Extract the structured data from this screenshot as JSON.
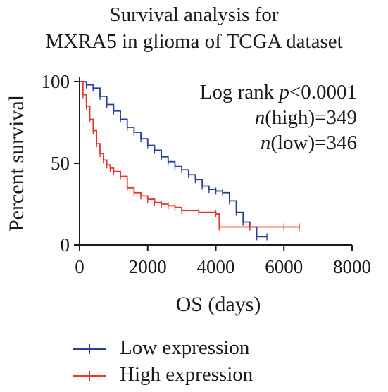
{
  "chart_data": {
    "type": "line",
    "title_lines": [
      "Survival analysis for",
      "MXRA5 in glioma of TCGA dataset"
    ],
    "xlabel": "OS (days)",
    "ylabel": "Percent survival",
    "xlim": [
      0,
      8000
    ],
    "ylim": [
      0,
      100
    ],
    "x_ticks": [
      "0",
      "2000",
      "4000",
      "6000",
      "8000"
    ],
    "y_ticks": [
      "0",
      "50",
      "100"
    ],
    "x_tick_values": [
      0,
      2000,
      4000,
      6000,
      8000
    ],
    "y_tick_values": [
      0,
      50,
      100
    ],
    "annotation": {
      "log_rank_prefix": "Log rank ",
      "log_rank_p": "p",
      "log_rank_value": "<0.0001",
      "n_symbol": "n",
      "n_high": "(high)=349",
      "n_low": "(low)=346"
    },
    "legend_position": "bottom-left",
    "series": [
      {
        "name": "Low expression",
        "color": "#2b3f9a",
        "x": [
          0,
          200,
          400,
          600,
          800,
          1000,
          1200,
          1400,
          1600,
          1800,
          2000,
          2200,
          2400,
          2600,
          2800,
          3000,
          3200,
          3400,
          3600,
          3800,
          4000,
          4200,
          4400,
          4600,
          4800,
          5000,
          5200,
          5500
        ],
        "y": [
          100,
          98,
          96,
          91,
          86,
          82,
          77,
          72,
          69,
          65,
          61,
          58,
          54,
          51,
          48,
          46,
          43,
          40,
          36,
          34,
          33,
          32,
          27,
          20,
          14,
          11,
          5,
          5
        ]
      },
      {
        "name": "High expression",
        "color": "#e8342e",
        "x": [
          0,
          100,
          200,
          300,
          400,
          500,
          600,
          700,
          800,
          900,
          1000,
          1200,
          1400,
          1600,
          1800,
          2000,
          2200,
          2400,
          2600,
          2800,
          3000,
          3500,
          4000,
          4100,
          5000,
          6000,
          6450
        ],
        "y": [
          100,
          92,
          85,
          77,
          70,
          62,
          56,
          52,
          49,
          47,
          45,
          42,
          35,
          32,
          30,
          28,
          26,
          25,
          24,
          23,
          21,
          20,
          19,
          11,
          11,
          11,
          11
        ]
      }
    ]
  },
  "legend_items": [
    {
      "label": "Low expression",
      "color": "#2b3f9a"
    },
    {
      "label": "High expression",
      "color": "#e8342e"
    }
  ]
}
